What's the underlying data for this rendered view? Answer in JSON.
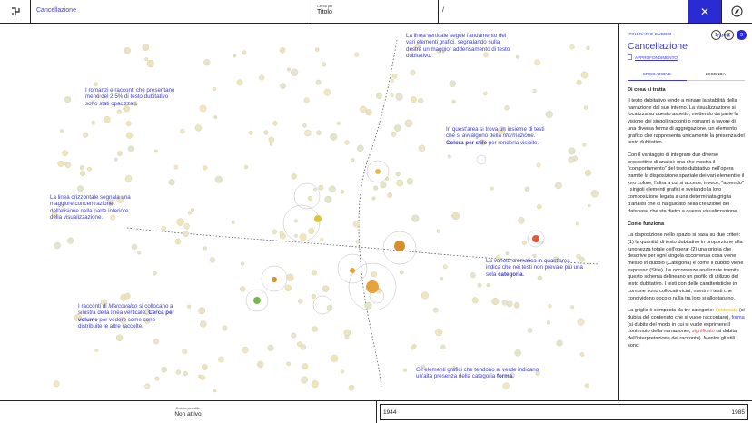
{
  "topbar": {
    "logo_icon": "app-logo-icon",
    "section_title": "Cancellazione",
    "search_label": "Cerca per",
    "search_value": "Titolo",
    "path_text": "/",
    "close_icon": "close-icon",
    "compass_icon": "compass-icon"
  },
  "annotations": {
    "vertical_line": "La linea verticale segue l'andamento dei vari elementi grafici, segnalando sulla destra un maggior addensamento di testo dubitativo.",
    "romanzi": "I romanzi e racconti che presentano meno del 2,5% di testo dubitativo sono stati opacizzati.",
    "informazione": [
      "In quest'area si trova un insieme di testi che si avvalgono della ",
      "nformazione.",
      " ",
      "Colora per stile",
      " per renderla visibile."
    ],
    "orizzontale": "La linea orizzontale segnala una maggiore concentrazione dell'elisione nella parte inferiore della visualizzazione.",
    "varieta": [
      "La varietà cromatica in quest'area indica che nei testi non prevale più una sola ",
      "categoria",
      "."
    ],
    "marcovaldo": [
      "I racconti di ",
      "Marcovaldo",
      " si collocano a sinistra della linea verticale. ",
      "Cerca per volume",
      " per vedere come sono distribuite le altre raccolte."
    ],
    "forma": [
      "Gli elementi grafici che tendono al verde indicano un'alta presenza della categoria ",
      "forma",
      "."
    ]
  },
  "panel": {
    "itinerary_label": "ITINERARIO DUBBIO",
    "tappe_label": "TAPPE",
    "steps": [
      "1",
      "2",
      "3"
    ],
    "active_step": 3,
    "title": "Cancellazione",
    "approfondimento": "APPROFONDIMENTO",
    "tabs": [
      "SPIEGAZIONE",
      "LEGENDA"
    ],
    "active_tab": 0,
    "h1": "Di cosa si tratta",
    "p1": "Il testo dubitativo tende a minare la stabilità della narrazione dal suo interno. La visualizzazione si focalizza su questo aspetto, mettendo da parte la visione dei singoli racconti o romanzi a favore di una diversa forma di aggregazione, un elemento grafico che rappresenta unicamente la presenza del testo dubitativo.",
    "p2": "Con il vantaggio di integrare due diverse prospettive di analisi: una che mostra il \"comportamento\" del testo dubitativo nell'opera tramite la disposizione spaziale dei vari elementi e il loro colore; l'altra a cui si accede, invece, \"aprendo\" i singoli elementi grafici e svelando la loro composizione legata a una determinata griglia d'analisi che ci ha guidato nella creazione del database che sta dietro a questa visualizzazione.",
    "h2": "Come funziona",
    "p3": "La disposizione nello spazio si basa su due criteri: (1) la quantità di testo dubitativo in proporzione alla lunghezza totale dell'opera; (2) una griglia che descrive per ogni singola occorrenza cosa viene messo in dubbio (Categoria) e come il dubbio viene espresso (Stile). Le occorrenze analizzate tramite questo schema delineano un profilo di utilizzo del testo dubitativo. I testi con delle caratteristiche in comune sono collocati vicini, mentre i testi che condividono poco o nulla tra loro si allontanano.",
    "p4": [
      "La griglia è composta da tre categorie: ",
      "contenuto",
      " (si dubita del contenuto che si vuole raccontare), ",
      "forma",
      " (si dubita del modo in cui si vuole esprimere il contenuto della narrazione), ",
      "significato",
      " (si dubita dell'interpretazione del racconto). Mentre gli stili sono: "
    ]
  },
  "bottombar": {
    "color_label": "Colora per stile",
    "color_value": "Non attivo",
    "year_start": "1944",
    "year_end": "1985"
  },
  "colors": {
    "accent": "#2b2bd4",
    "contenuto": "#e6b619",
    "forma": "#3b3bd0",
    "significato": "#e0433a"
  }
}
